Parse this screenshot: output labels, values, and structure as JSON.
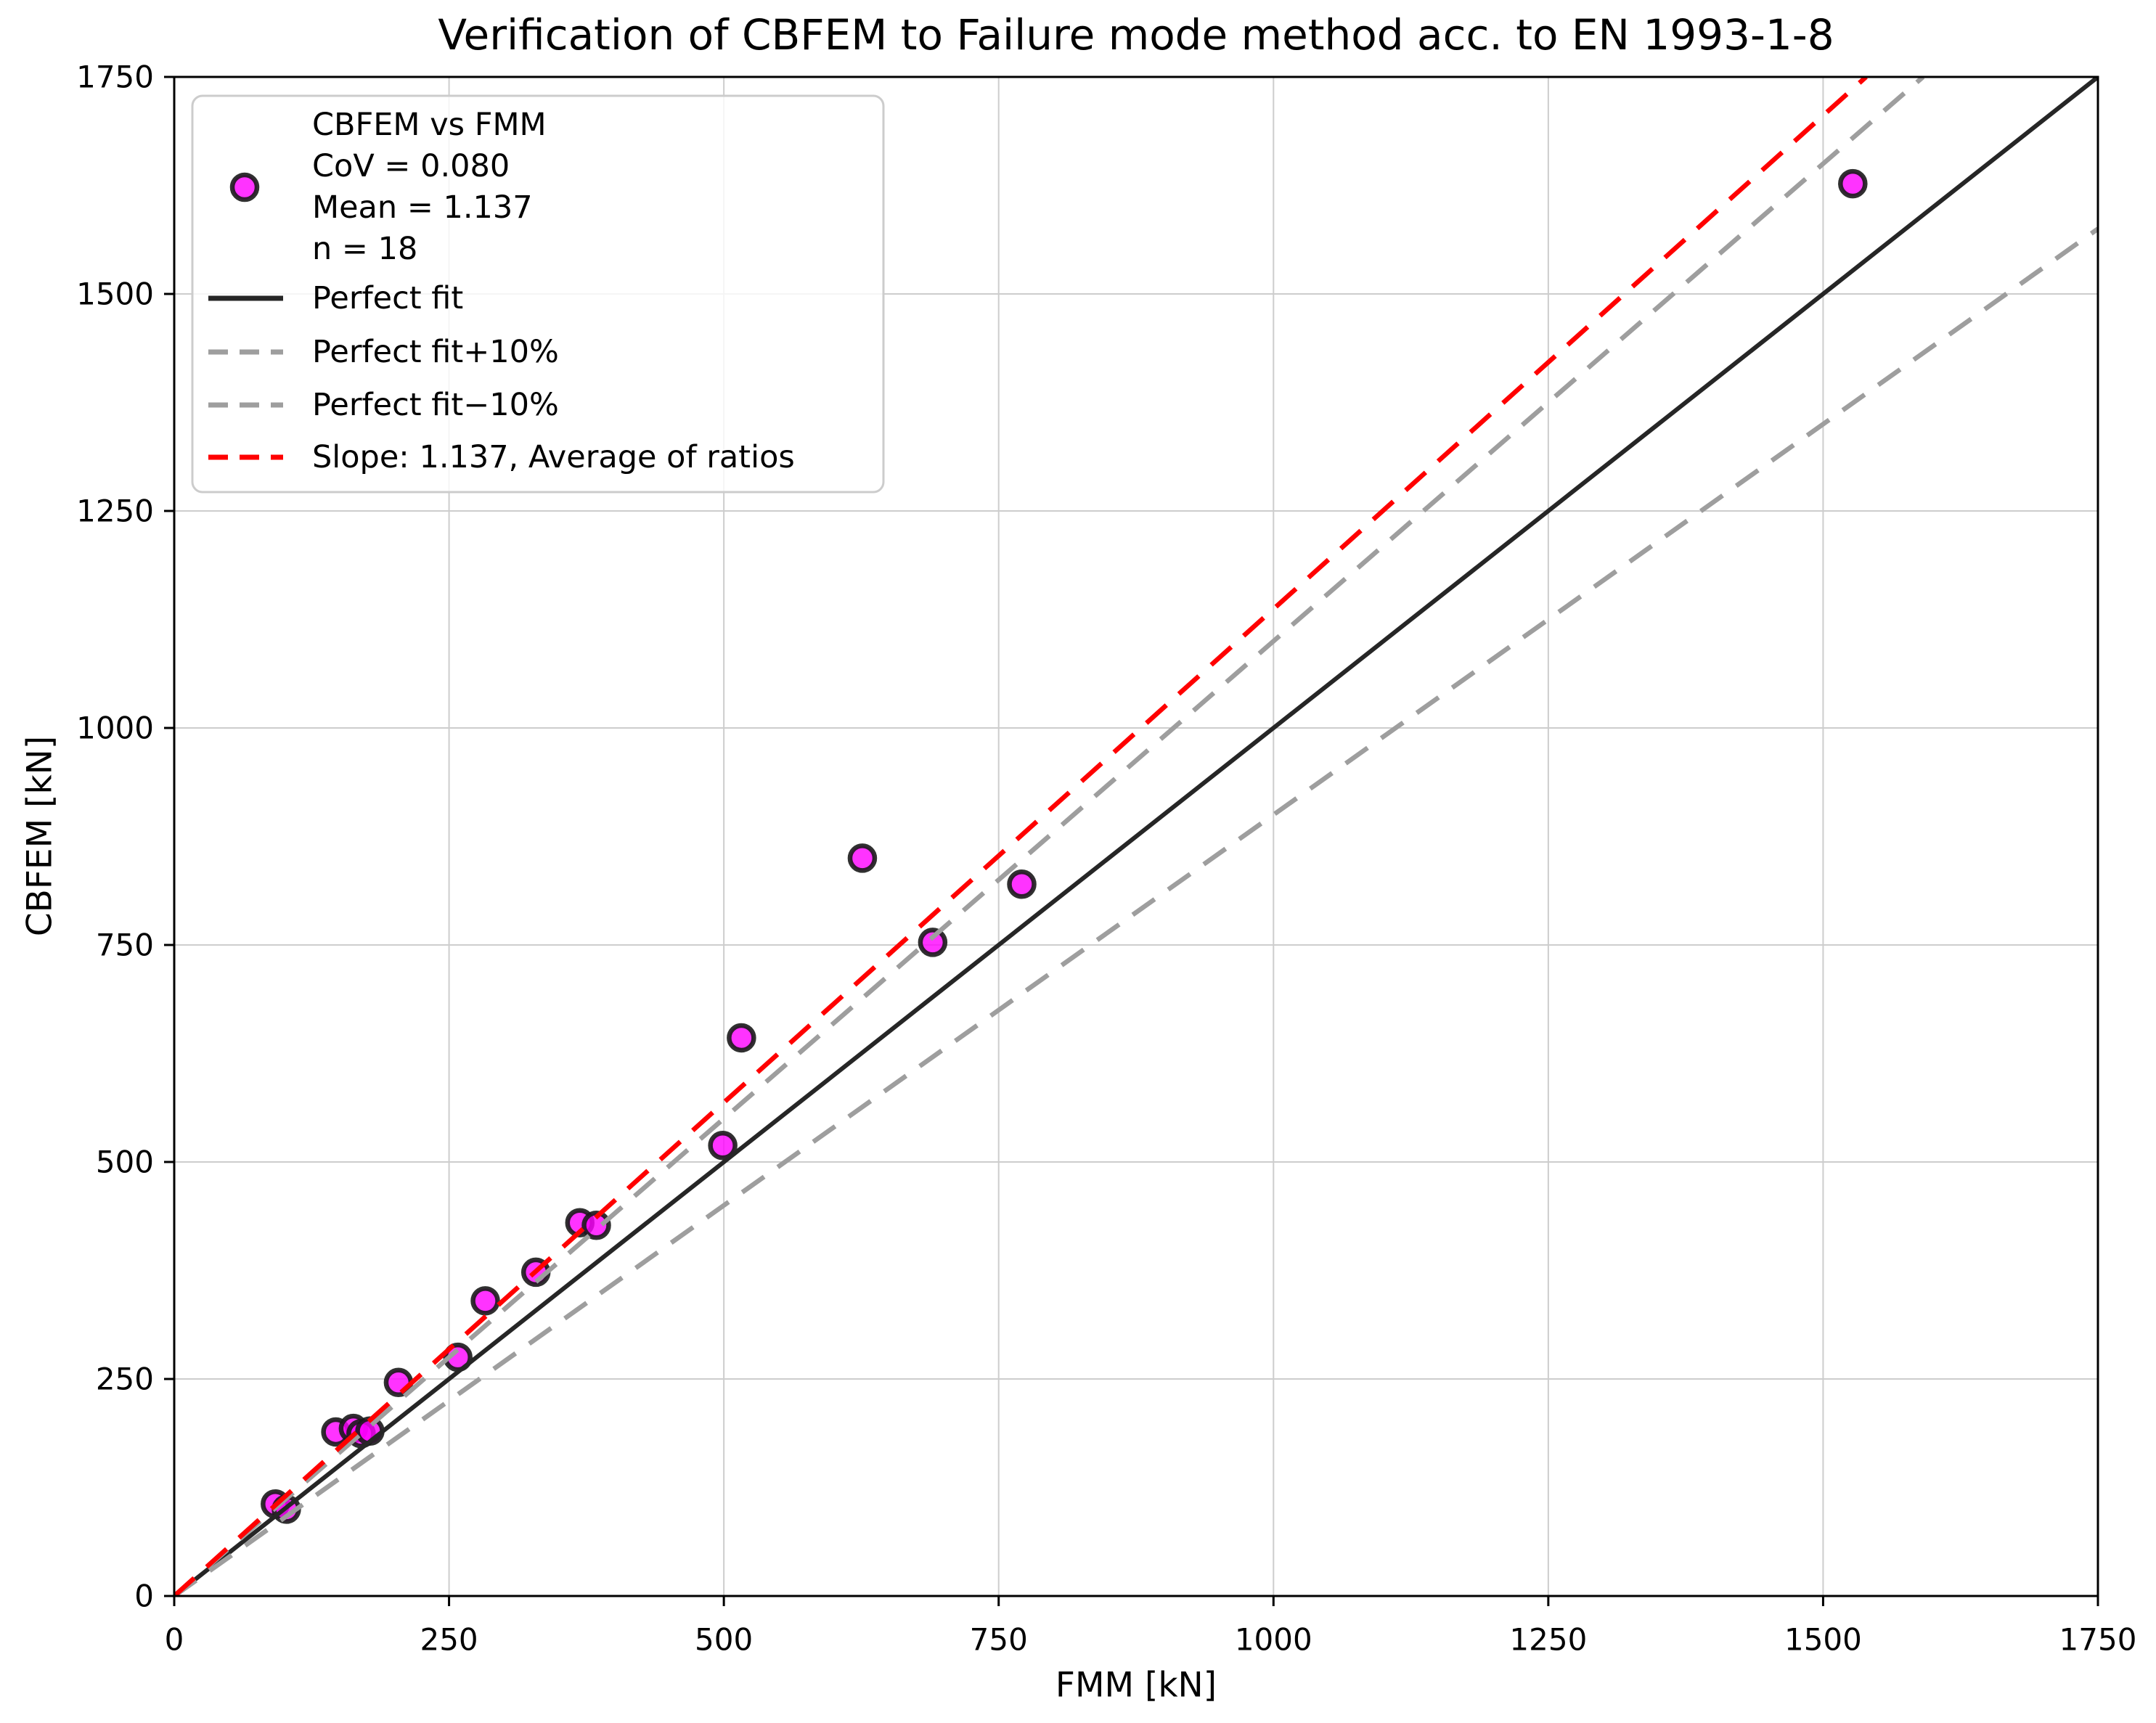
{
  "figure": {
    "title": "Verification of CBFEM to Failure mode method acc. to EN 1993-1-8",
    "xlabel": "FMM [kN]",
    "ylabel": "CBFEM [kN]"
  },
  "colors": {
    "marker_fill": "#ff00ff",
    "marker_edge": "#1a1a1a",
    "perfect_fit": "#262626",
    "tolerance_band": "#9e9e9e",
    "slope_line": "#ff0000",
    "grid": "#cdcdcd",
    "spine": "#000000",
    "legend_border": "#cccccc"
  },
  "chart_data": {
    "type": "scatter",
    "title": "Verification of CBFEM to Failure mode method acc. to EN 1993-1-8",
    "xlabel": "FMM [kN]",
    "ylabel": "CBFEM [kN]",
    "xlim": [
      0,
      1750
    ],
    "ylim": [
      0,
      1750
    ],
    "xticks": [
      0,
      250,
      500,
      750,
      1000,
      1250,
      1500,
      1750
    ],
    "yticks": [
      0,
      250,
      500,
      750,
      1000,
      1250,
      1500,
      1750
    ],
    "grid": true,
    "legend_position": "upper left",
    "series": [
      {
        "name": "CBFEM vs FMM",
        "type": "scatter",
        "color": "#ff00ff",
        "edge_color": "#1a1a1a",
        "points": [
          [
            92,
            106
          ],
          [
            102,
            100
          ],
          [
            147,
            189
          ],
          [
            163,
            193
          ],
          [
            170,
            187
          ],
          [
            178,
            190
          ],
          [
            204,
            246
          ],
          [
            258,
            275
          ],
          [
            283,
            340
          ],
          [
            329,
            373
          ],
          [
            369,
            430
          ],
          [
            384,
            427
          ],
          [
            499,
            519
          ],
          [
            516,
            643
          ],
          [
            626,
            850
          ],
          [
            690,
            753
          ],
          [
            771,
            820
          ],
          [
            1527,
            1627
          ]
        ]
      },
      {
        "name": "Perfect fit",
        "type": "line",
        "style": "solid",
        "color": "#262626",
        "slope": 1.0,
        "x": [
          0,
          1750
        ],
        "y": [
          0,
          1750
        ]
      },
      {
        "name": "Perfect fit+10%",
        "type": "line",
        "style": "dashed",
        "color": "#9e9e9e",
        "slope": 1.1,
        "x": [
          0,
          1590.9
        ],
        "y": [
          0,
          1750
        ]
      },
      {
        "name": "Perfect fit−10%",
        "type": "line",
        "style": "dashed",
        "color": "#9e9e9e",
        "slope": 0.9,
        "x": [
          0,
          1750
        ],
        "y": [
          0,
          1575
        ]
      },
      {
        "name": "Slope: 1.137, Average of ratios",
        "type": "line",
        "style": "dashed",
        "color": "#ff0000",
        "slope": 1.137,
        "x": [
          0,
          1539.1
        ],
        "y": [
          0,
          1750
        ]
      }
    ],
    "stats": {
      "cov": "CoV = 0.080",
      "mean": "Mean = 1.137",
      "n": "n = 18"
    },
    "legend": {
      "scatter_label_lines": [
        "CBFEM vs FMM",
        "CoV = 0.080",
        "Mean = 1.137",
        "n = 18"
      ],
      "entries": [
        {
          "label": "Perfect fit",
          "style": "solid",
          "color": "#262626"
        },
        {
          "label": "Perfect fit+10%",
          "style": "dashed",
          "color": "#9e9e9e"
        },
        {
          "label": "Perfect fit−10%",
          "style": "dashed",
          "color": "#9e9e9e"
        },
        {
          "label": "Slope: 1.137, Average of ratios",
          "style": "dashed",
          "color": "#ff0000"
        }
      ]
    }
  }
}
